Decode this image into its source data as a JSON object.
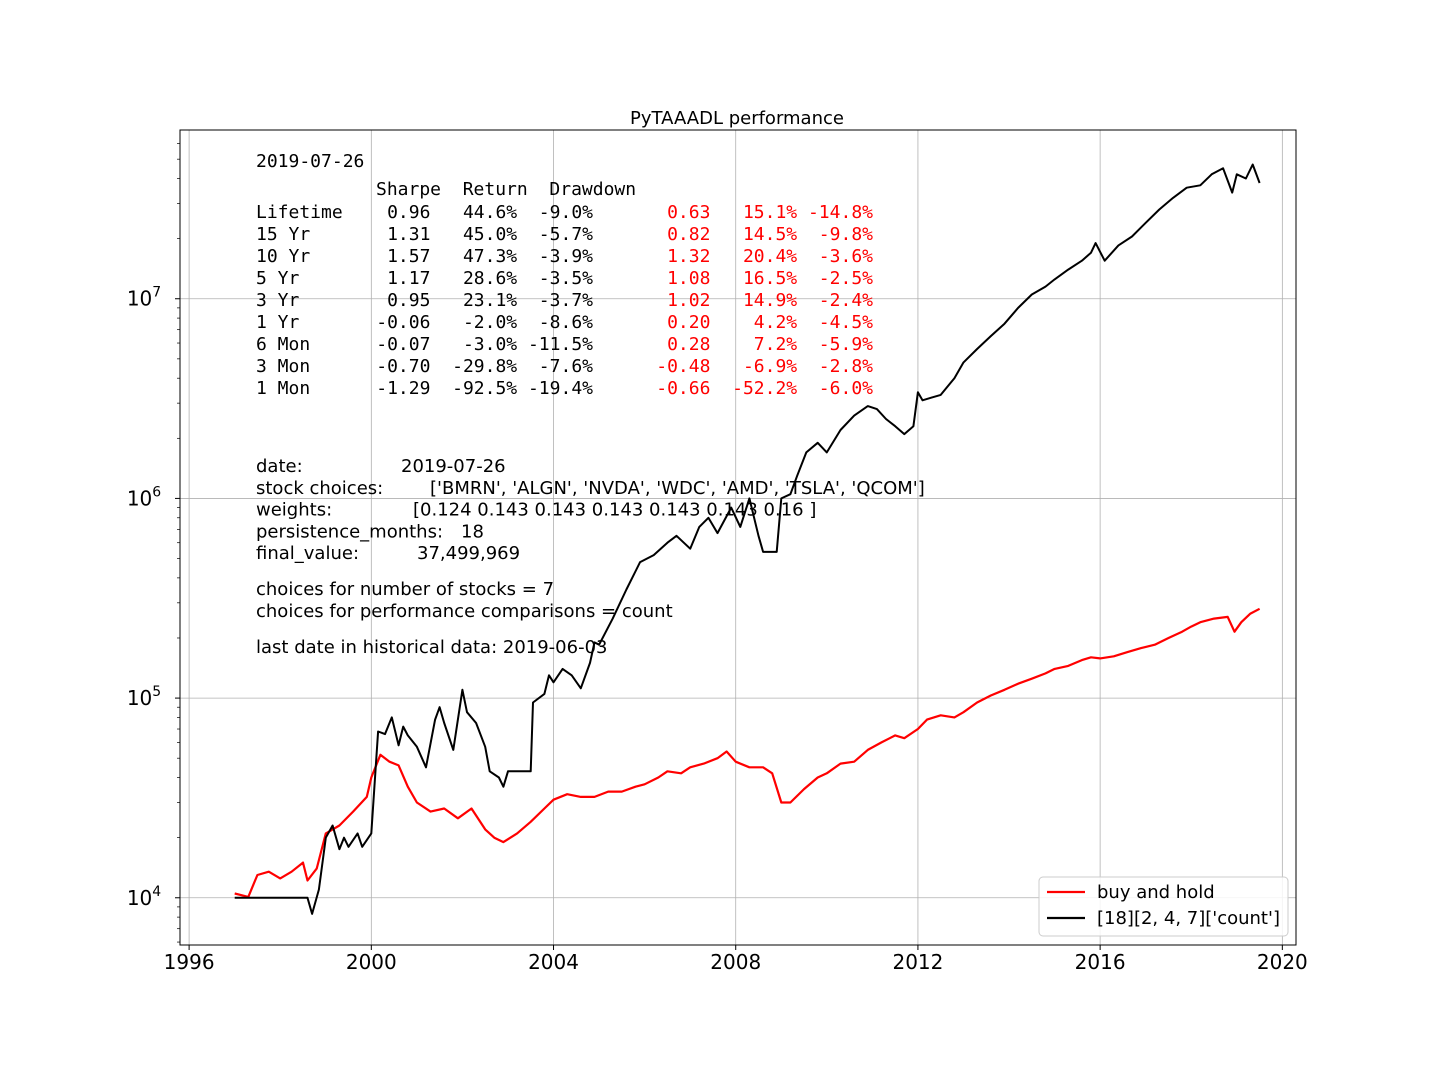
{
  "chart_data": {
    "type": "line",
    "title": "PyTAAADL performance",
    "xlabel": "",
    "ylabel": "",
    "y_scale": "log",
    "xlim": [
      1995.8,
      2020.3
    ],
    "ylim": [
      5800,
      70000000
    ],
    "x_ticks": [
      1996,
      2000,
      2004,
      2008,
      2012,
      2016,
      2020
    ],
    "x_tick_labels": [
      "1996",
      "2000",
      "2004",
      "2008",
      "2012",
      "2016",
      "2020"
    ],
    "y_ticks": [
      10000,
      100000,
      1000000,
      10000000
    ],
    "y_tick_labels": [
      {
        "base": "10",
        "exp": "4"
      },
      {
        "base": "10",
        "exp": "5"
      },
      {
        "base": "10",
        "exp": "6"
      },
      {
        "base": "10",
        "exp": "7"
      }
    ],
    "grid": true,
    "legend_position": "lower-right",
    "series": [
      {
        "name": "buy and hold",
        "color": "#ff0000",
        "x": [
          1997.0,
          1997.15,
          1997.3,
          1997.5,
          1997.75,
          1998.0,
          1998.25,
          1998.5,
          1998.6,
          1998.8,
          1999.0,
          1999.3,
          1999.6,
          1999.9,
          2000.0,
          2000.2,
          2000.4,
          2000.6,
          2000.8,
          2001.0,
          2001.3,
          2001.6,
          2001.9,
          2002.2,
          2002.5,
          2002.7,
          2002.9,
          2003.2,
          2003.5,
          2003.8,
          2004.0,
          2004.3,
          2004.6,
          2004.9,
          2005.2,
          2005.5,
          2005.8,
          2006.0,
          2006.3,
          2006.5,
          2006.8,
          2007.0,
          2007.3,
          2007.6,
          2007.8,
          2008.0,
          2008.3,
          2008.6,
          2008.8,
          2009.0,
          2009.2,
          2009.5,
          2009.8,
          2010.0,
          2010.3,
          2010.6,
          2010.9,
          2011.2,
          2011.5,
          2011.7,
          2012.0,
          2012.2,
          2012.5,
          2012.8,
          2013.0,
          2013.3,
          2013.6,
          2013.9,
          2014.2,
          2014.5,
          2014.8,
          2015.0,
          2015.3,
          2015.6,
          2015.8,
          2016.0,
          2016.3,
          2016.6,
          2016.9,
          2017.2,
          2017.5,
          2017.8,
          2018.0,
          2018.2,
          2018.5,
          2018.8,
          2018.95,
          2019.1,
          2019.3,
          2019.5
        ],
        "y": [
          10500,
          10300,
          10100,
          13000,
          13500,
          12500,
          13500,
          15000,
          12200,
          14000,
          21000,
          23000,
          27000,
          32000,
          40000,
          52000,
          48000,
          46000,
          36000,
          30000,
          27000,
          28000,
          25000,
          28000,
          22000,
          20000,
          19000,
          21000,
          24000,
          28000,
          31000,
          33000,
          32000,
          32000,
          34000,
          34000,
          36000,
          37000,
          40000,
          43000,
          42000,
          45000,
          47000,
          50000,
          54000,
          48000,
          45000,
          45000,
          42000,
          30000,
          30000,
          35000,
          40000,
          42000,
          47000,
          48000,
          55000,
          60000,
          65000,
          63000,
          70000,
          78000,
          82000,
          80000,
          85000,
          95000,
          103000,
          110000,
          118000,
          125000,
          133000,
          140000,
          145000,
          155000,
          160000,
          158000,
          162000,
          170000,
          178000,
          185000,
          200000,
          215000,
          228000,
          240000,
          250000,
          255000,
          215000,
          240000,
          265000,
          280000
        ]
      },
      {
        "name": "[18][2, 4, 7]['count']",
        "color": "#000000",
        "x": [
          1997.0,
          1998.0,
          1998.6,
          1998.7,
          1998.85,
          1999.0,
          1999.15,
          1999.3,
          1999.4,
          1999.5,
          1999.7,
          1999.8,
          2000.0,
          2000.15,
          2000.3,
          2000.45,
          2000.6,
          2000.7,
          2000.8,
          2001.0,
          2001.2,
          2001.4,
          2001.5,
          2001.6,
          2001.8,
          2002.0,
          2002.1,
          2002.3,
          2002.5,
          2002.6,
          2002.8,
          2002.9,
          2003.0,
          2003.2,
          2003.5,
          2003.55,
          2003.8,
          2003.9,
          2004.0,
          2004.2,
          2004.4,
          2004.6,
          2004.8,
          2004.9,
          2005.0,
          2005.3,
          2005.6,
          2005.9,
          2006.2,
          2006.5,
          2006.7,
          2007.0,
          2007.2,
          2007.4,
          2007.6,
          2007.9,
          2008.1,
          2008.3,
          2008.5,
          2008.6,
          2008.9,
          2009.0,
          2009.2,
          2009.35,
          2009.55,
          2009.8,
          2010.0,
          2010.3,
          2010.6,
          2010.9,
          2011.1,
          2011.3,
          2011.5,
          2011.7,
          2011.9,
          2012.0,
          2012.1,
          2012.3,
          2012.5,
          2012.8,
          2013.0,
          2013.3,
          2013.6,
          2013.9,
          2014.2,
          2014.5,
          2014.8,
          2015.0,
          2015.3,
          2015.6,
          2015.8,
          2015.9,
          2016.1,
          2016.4,
          2016.7,
          2017.0,
          2017.3,
          2017.6,
          2017.9,
          2018.2,
          2018.45,
          2018.7,
          2018.9,
          2019.0,
          2019.2,
          2019.35,
          2019.5
        ],
        "y": [
          10000,
          10000,
          10000,
          8300,
          11000,
          20000,
          23000,
          17500,
          20000,
          18000,
          21000,
          18000,
          21000,
          68000,
          66000,
          80000,
          58000,
          72000,
          65000,
          57000,
          45000,
          78000,
          90000,
          75000,
          55000,
          110000,
          85000,
          75000,
          57000,
          43000,
          40000,
          36000,
          43000,
          43000,
          43000,
          95000,
          105000,
          130000,
          120000,
          140000,
          130000,
          112000,
          150000,
          190000,
          185000,
          250000,
          350000,
          480000,
          520000,
          600000,
          650000,
          560000,
          720000,
          800000,
          670000,
          900000,
          720000,
          1000000,
          650000,
          540000,
          540000,
          1000000,
          1050000,
          1300000,
          1700000,
          1900000,
          1700000,
          2200000,
          2600000,
          2900000,
          2800000,
          2500000,
          2300000,
          2100000,
          2300000,
          3400000,
          3100000,
          3200000,
          3300000,
          4000000,
          4800000,
          5600000,
          6500000,
          7500000,
          9000000,
          10500000,
          11500000,
          12500000,
          14000000,
          15500000,
          17000000,
          19000000,
          15500000,
          18500000,
          20500000,
          24000000,
          28000000,
          32000000,
          36000000,
          37000000,
          42000000,
          45000000,
          34000000,
          42000000,
          40000000,
          47000000,
          38000000
        ]
      }
    ],
    "annotations": {
      "stats_date": "2019-07-26",
      "stats_header": "Sharpe  Return  Drawdown",
      "stats_rows": [
        {
          "label": "Lifetime",
          "black": "0.96   44.6%  -9.0%",
          "red": "0.63   15.1% -14.8%"
        },
        {
          "label": "15 Yr",
          "black": "1.31   45.0%  -5.7%",
          "red": "0.82   14.5%  -9.8%"
        },
        {
          "label": "10 Yr",
          "black": "1.57   47.3%  -3.9%",
          "red": "1.32   20.4%  -3.6%"
        },
        {
          "label": "5 Yr",
          "black": "1.17   28.6%  -3.5%",
          "red": "1.08   16.5%  -2.5%"
        },
        {
          "label": "3 Yr",
          "black": "0.95   23.1%  -3.7%",
          "red": "1.02   14.9%  -2.4%"
        },
        {
          "label": "1 Yr",
          "black": "-0.06   -2.0%  -8.6%",
          "red": "0.20    4.2%  -4.5%"
        },
        {
          "label": "6 Mon",
          "black": "-0.07   -3.0% -11.5%",
          "red": "0.28    7.2%  -5.9%"
        },
        {
          "label": "3 Mon",
          "black": "-0.70  -29.8%  -7.6%",
          "red": "-0.48   -6.9%  -2.8%"
        },
        {
          "label": "1 Mon",
          "black": "-1.29  -92.5% -19.4%",
          "red": "-0.66  -52.2%  -6.0%"
        }
      ],
      "info_rows": [
        {
          "label": "date:",
          "value": "2019-07-26"
        },
        {
          "label": "stock choices:",
          "value": "['BMRN', 'ALGN', 'NVDA', 'WDC', 'AMD', 'TSLA', 'QCOM']"
        },
        {
          "label": "weights:",
          "value": "[0.124 0.143 0.143 0.143 0.143 0.143 0.16 ]"
        },
        {
          "label": "persistence_months:",
          "value": "18"
        },
        {
          "label": "final_value:",
          "value": "37,499,969"
        }
      ],
      "choices_stocks": "choices for number of stocks = 7",
      "choices_perf": "choices for performance comparisons = count",
      "last_date": "last date in historical data: 2019-06-03"
    }
  }
}
